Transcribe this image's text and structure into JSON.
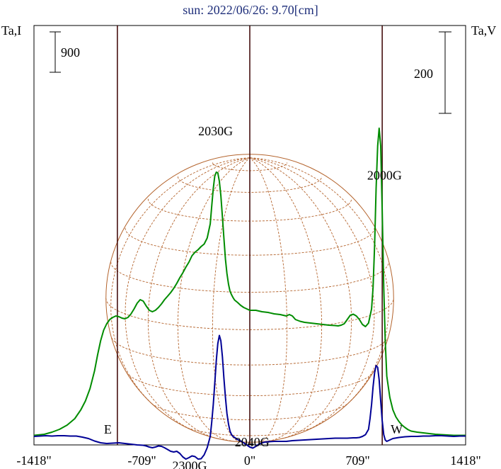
{
  "chart_data": {
    "type": "line",
    "title": "sun: 2022/06/26: 9.70[cm]",
    "left_axis_label": "Ta,I",
    "right_axis_label": "Ta,V",
    "xlim": [
      -1418,
      1418
    ],
    "x_ticks": [
      {
        "value": -1418,
        "label": "-1418\""
      },
      {
        "value": -709,
        "label": "-709\""
      },
      {
        "value": 0,
        "label": "0\""
      },
      {
        "value": 709,
        "label": "709\""
      },
      {
        "value": 1418,
        "label": "1418\""
      }
    ],
    "limb_markers": [
      {
        "x": -870,
        "label": "E"
      },
      {
        "x": 870,
        "label": "W"
      }
    ],
    "scale_bars": [
      {
        "side": "left",
        "label": "900"
      },
      {
        "side": "right",
        "label": "200"
      }
    ],
    "series": [
      {
        "color": "#008c00",
        "x": [
          -1418,
          -1350,
          -1300,
          -1250,
          -1200,
          -1150,
          -1110,
          -1080,
          -1050,
          -1020,
          -1000,
          -980,
          -960,
          -940,
          -920,
          -900,
          -880,
          -860,
          -840,
          -820,
          -800,
          -780,
          -760,
          -740,
          -720,
          -700,
          -680,
          -660,
          -640,
          -620,
          -600,
          -580,
          -560,
          -540,
          -520,
          -500,
          -480,
          -460,
          -440,
          -420,
          -400,
          -380,
          -360,
          -340,
          -320,
          -300,
          -280,
          -260,
          -250,
          -240,
          -230,
          -220,
          -210,
          -200,
          -190,
          -180,
          -170,
          -160,
          -150,
          -140,
          -130,
          -120,
          -110,
          -100,
          -80,
          -60,
          -40,
          -20,
          0,
          40,
          80,
          120,
          160,
          200,
          240,
          260,
          280,
          300,
          330,
          360,
          400,
          440,
          480,
          520,
          560,
          580,
          600,
          620,
          640,
          660,
          680,
          700,
          720,
          740,
          760,
          780,
          800,
          810,
          820,
          830,
          840,
          850,
          860,
          870,
          880,
          890,
          900,
          920,
          940,
          960,
          980,
          1000,
          1020,
          1040,
          1060,
          1100,
          1140,
          1180,
          1220,
          1260,
          1300,
          1340,
          1380,
          1418
        ],
        "y": [
          3,
          6,
          12,
          20,
          32,
          50,
          75,
          100,
          135,
          185,
          230,
          270,
          300,
          318,
          330,
          336,
          340,
          338,
          334,
          332,
          336,
          346,
          360,
          376,
          386,
          382,
          368,
          356,
          352,
          356,
          364,
          374,
          386,
          396,
          406,
          418,
          432,
          448,
          462,
          478,
          492,
          510,
          520,
          527,
          536,
          543,
          560,
          600,
          650,
          700,
          735,
          746,
          744,
          720,
          680,
          620,
          560,
          500,
          460,
          430,
          410,
          400,
          392,
          385,
          378,
          370,
          364,
          360,
          356,
          356,
          352,
          350,
          346,
          344,
          340,
          344,
          340,
          330,
          325,
          322,
          320,
          318,
          316,
          314,
          313,
          312,
          314,
          318,
          330,
          342,
          345,
          340,
          330,
          316,
          310,
          320,
          360,
          420,
          540,
          700,
          820,
          870,
          820,
          640,
          420,
          270,
          170,
          110,
          75,
          55,
          42,
          32,
          25,
          19,
          15,
          12,
          10,
          8,
          6,
          5,
          4,
          3,
          3,
          3
        ]
      },
      {
        "color": "#000096",
        "x": [
          -1418,
          -1380,
          -1340,
          -1300,
          -1260,
          -1220,
          -1180,
          -1140,
          -1100,
          -1060,
          -1020,
          -980,
          -940,
          -900,
          -860,
          -820,
          -780,
          -740,
          -700,
          -680,
          -660,
          -640,
          -620,
          -600,
          -580,
          -560,
          -540,
          -520,
          -500,
          -480,
          -460,
          -440,
          -420,
          -400,
          -380,
          -360,
          -340,
          -320,
          -300,
          -280,
          -260,
          -250,
          -240,
          -230,
          -220,
          -210,
          -200,
          -190,
          -180,
          -170,
          -160,
          -150,
          -140,
          -130,
          -120,
          -110,
          -100,
          -90,
          -80,
          -60,
          -40,
          -20,
          0,
          20,
          40,
          60,
          80,
          100,
          120,
          160,
          200,
          240,
          280,
          320,
          360,
          400,
          440,
          480,
          520,
          560,
          600,
          640,
          680,
          700,
          720,
          740,
          760,
          780,
          790,
          800,
          810,
          820,
          830,
          840,
          850,
          860,
          870,
          880,
          890,
          900,
          920,
          940,
          980,
          1020,
          1060,
          1100,
          1140,
          1180,
          1220,
          1260,
          1300,
          1340,
          1380,
          1418
        ],
        "y": [
          0,
          1,
          2,
          1,
          2,
          2,
          1,
          1,
          -2,
          -6,
          -13,
          -18,
          -20,
          -19,
          -18,
          -20,
          -22,
          -24,
          -25,
          -27,
          -30,
          -32,
          -30,
          -27,
          -28,
          -32,
          -37,
          -42,
          -44,
          -42,
          -48,
          -58,
          -64,
          -60,
          -55,
          -57,
          -64,
          -63,
          -52,
          -32,
          0,
          40,
          90,
          150,
          215,
          262,
          285,
          270,
          225,
          165,
          110,
          65,
          35,
          15,
          5,
          0,
          -3,
          -6,
          -9,
          -13,
          -18,
          -24,
          -30,
          -33,
          -28,
          -22,
          -18,
          -16,
          -15,
          -14,
          -14,
          -14,
          -12,
          -11,
          -10,
          -9,
          -8,
          -7,
          -6,
          -5,
          -5,
          -5,
          -4,
          -4,
          -3,
          0,
          5,
          20,
          50,
          90,
          140,
          180,
          200,
          195,
          160,
          100,
          45,
          5,
          -10,
          -14,
          -10,
          -6,
          -3,
          -1,
          0,
          0,
          1,
          1,
          2,
          2,
          1,
          0,
          1,
          1
        ]
      }
    ],
    "annotations": [
      {
        "text": "2030G",
        "x": -225,
        "y_mm": 850
      },
      {
        "text": "2000G",
        "x": 885,
        "y_mm": 725
      },
      {
        "text": "2040G",
        "x": 15,
        "y_mm": -28
      },
      {
        "text": "2300G",
        "x": -395,
        "y_mm": -95
      }
    ],
    "solar_disk": {
      "radius_arcsec": 945,
      "center_y_mm": 390
    }
  }
}
